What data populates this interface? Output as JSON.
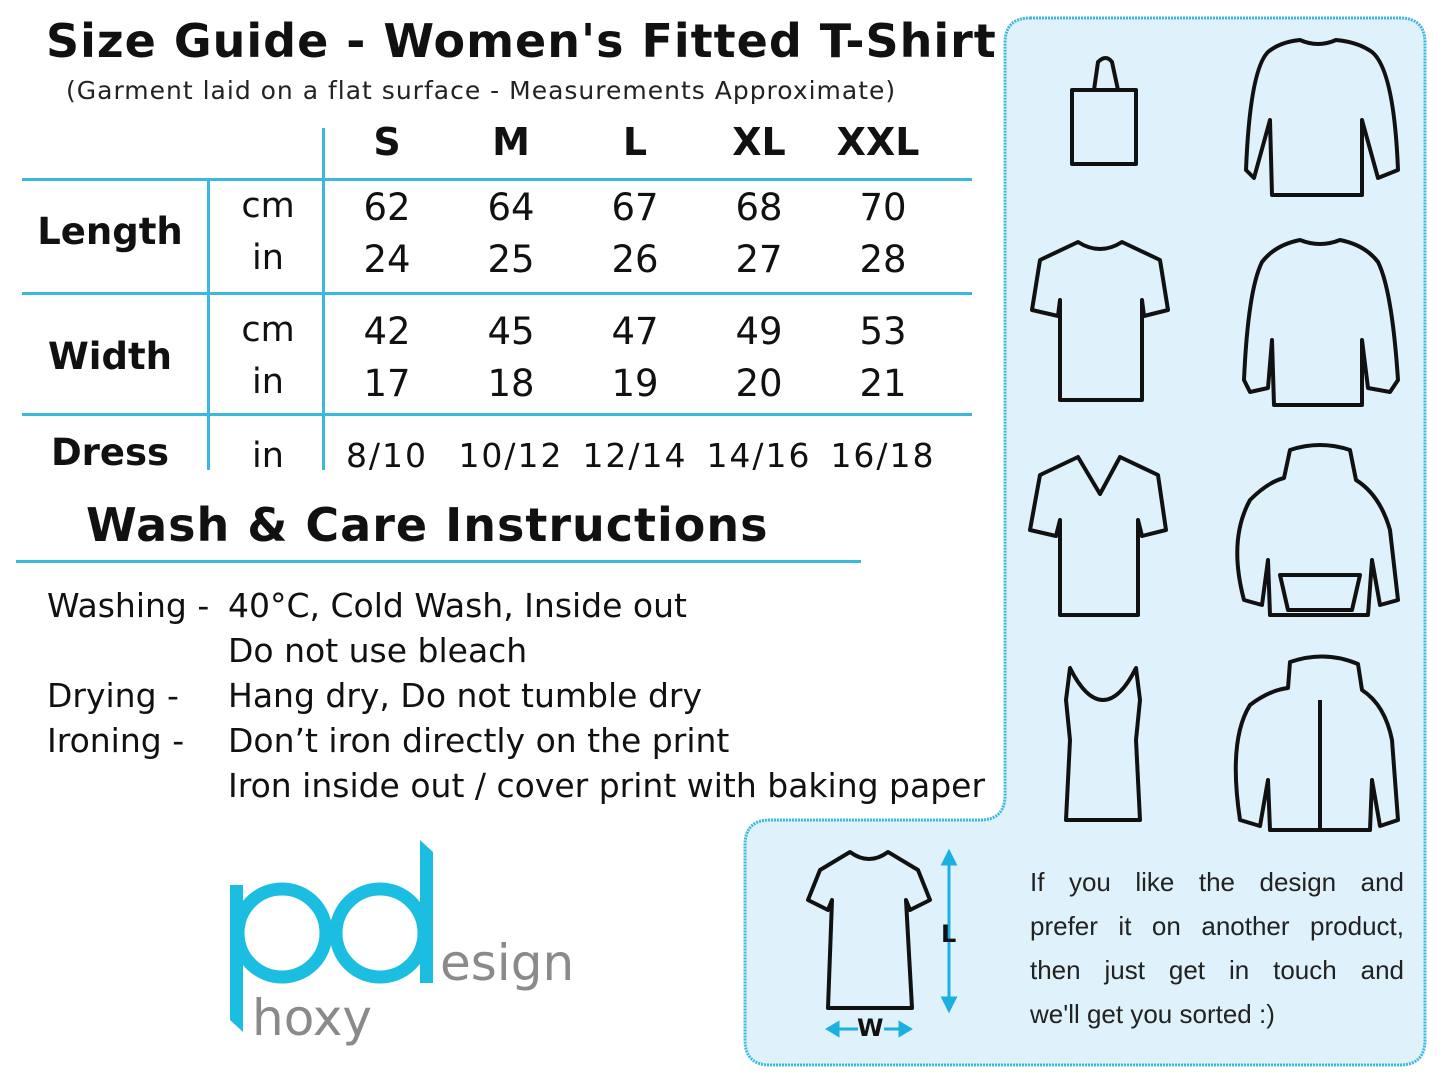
{
  "header": {
    "title": "Size Guide - Women's Fitted T-Shirt",
    "subtitle": "(Garment laid on a flat surface - Measurements Approximate)"
  },
  "size_table": {
    "sizes": [
      "S",
      "M",
      "L",
      "XL",
      "XXL"
    ],
    "rows": [
      {
        "label": "Length",
        "units": [
          {
            "unit": "cm",
            "values": [
              "62",
              "64",
              "67",
              "68",
              "70"
            ]
          },
          {
            "unit": "in",
            "values": [
              "24",
              "25",
              "26",
              "27",
              "28"
            ]
          }
        ]
      },
      {
        "label": "Width",
        "units": [
          {
            "unit": "cm",
            "values": [
              "42",
              "45",
              "47",
              "49",
              "53"
            ]
          },
          {
            "unit": "in",
            "values": [
              "17",
              "18",
              "19",
              "20",
              "21"
            ]
          }
        ]
      },
      {
        "label": "Dress",
        "units": [
          {
            "unit": "in",
            "values": [
              "8/10",
              "10/12",
              "12/14",
              "14/16",
              "16/18"
            ]
          }
        ]
      }
    ]
  },
  "care": {
    "title": "Wash & Care Instructions",
    "lines": [
      {
        "label": "Washing -",
        "value": "40°C, Cold Wash, Inside out"
      },
      {
        "label": "",
        "value": "Do not use bleach"
      },
      {
        "label": "Drying -",
        "value": "Hang dry, Do not tumble dry"
      },
      {
        "label": "Ironing -",
        "value": "Don’t iron directly on the print"
      },
      {
        "label": "",
        "value": "Iron inside out / cover print with baking paper"
      }
    ]
  },
  "logo": {
    "text": "phoxy design",
    "letters_main": "pd",
    "suffix": "esign",
    "sub": "hoxy",
    "main_color": "#1bbde0",
    "text_color": "#8a8a8a"
  },
  "products": [
    "tote-bag",
    "long-sleeve-tshirt",
    "tshirt",
    "sweatshirt",
    "v-neck-tshirt",
    "hoodie",
    "vest-top",
    "zip-hoodie"
  ],
  "diagram": {
    "length_label": "L",
    "width_label": "W"
  },
  "note": {
    "lines": [
      "If you like the design and",
      "prefer it on another product,",
      "then just get in touch and",
      "we'll get you sorted :)"
    ]
  },
  "colors": {
    "accent": "#3bb8e0",
    "panel": "#dff1fb"
  }
}
